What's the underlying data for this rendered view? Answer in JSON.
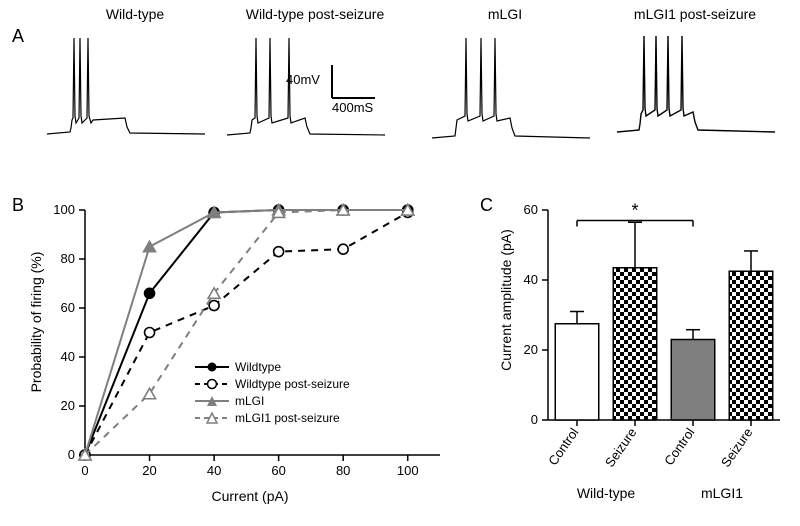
{
  "panelA": {
    "label": "A",
    "columns": [
      {
        "title": "Wild-type"
      },
      {
        "title": "Wild-type post-seizure"
      },
      {
        "title": "mLGI"
      },
      {
        "title": "mLGI1 post-seizure"
      }
    ],
    "scalebar": {
      "v_label": "40mV",
      "h_label": "400mS"
    },
    "trace_color": "#000000",
    "trace_stroke": 1.2
  },
  "panelB": {
    "label": "B",
    "type": "line",
    "xlabel": "Current (pA)",
    "ylabel": "Probability of firing (%)",
    "xlim": [
      0,
      110
    ],
    "xtick_step": 20,
    "ylim": [
      0,
      100
    ],
    "ytick_step": 20,
    "axis_color": "#000000",
    "grid": false,
    "background_color": "#ffffff",
    "label_fontsize": 14,
    "tick_fontsize": 13,
    "series": [
      {
        "name": "Wildtype",
        "color": "#000000",
        "dash": "solid",
        "marker": "circle",
        "filled": true,
        "x": [
          0,
          20,
          40,
          60,
          80,
          100
        ],
        "y": [
          0,
          66,
          99,
          100,
          100,
          100
        ]
      },
      {
        "name": "Wildtype post-seizure",
        "color": "#000000",
        "dash": "dashed",
        "marker": "circle",
        "filled": false,
        "x": [
          0,
          20,
          40,
          60,
          80,
          100
        ],
        "y": [
          0,
          50,
          61,
          83,
          84,
          99
        ]
      },
      {
        "name": "mLGI",
        "color": "#7f7f7f",
        "dash": "solid",
        "marker": "triangle",
        "filled": true,
        "x": [
          0,
          20,
          40,
          60,
          80,
          100
        ],
        "y": [
          0,
          85,
          99,
          100,
          100,
          100
        ]
      },
      {
        "name": "mLGI1 post-seizure",
        "color": "#7f7f7f",
        "dash": "dashed",
        "marker": "triangle",
        "filled": false,
        "x": [
          0,
          20,
          40,
          60,
          80,
          100
        ],
        "y": [
          0,
          25,
          66,
          99,
          100,
          100
        ]
      }
    ]
  },
  "panelC": {
    "label": "C",
    "type": "bar",
    "ylabel": "Current amplitude (pA)",
    "ylim": [
      0,
      60
    ],
    "ytick_step": 20,
    "axis_color": "#000000",
    "label_fontsize": 14,
    "tick_fontsize": 13,
    "bar_border": "#000000",
    "bar_border_width": 1.5,
    "bar_width": 0.75,
    "groups": [
      {
        "name": "Wild-type",
        "bars": [
          {
            "label": "Control",
            "value": 27.5,
            "err": 3.5,
            "fill": "#ffffff",
            "pattern": "none"
          },
          {
            "label": "Seizure",
            "value": 43.5,
            "err": 13.0,
            "fill": "#000000",
            "pattern": "checker"
          }
        ]
      },
      {
        "name": "mLGI1",
        "bars": [
          {
            "label": "Control",
            "value": 23.0,
            "err": 2.8,
            "fill": "#7f7f7f",
            "pattern": "none"
          },
          {
            "label": "Seizure",
            "value": 42.5,
            "err": 5.8,
            "fill": "#000000",
            "pattern": "checker"
          }
        ]
      }
    ],
    "significance": {
      "from_bar": 0,
      "to_bar": 2,
      "label": "*",
      "y": 57
    }
  }
}
